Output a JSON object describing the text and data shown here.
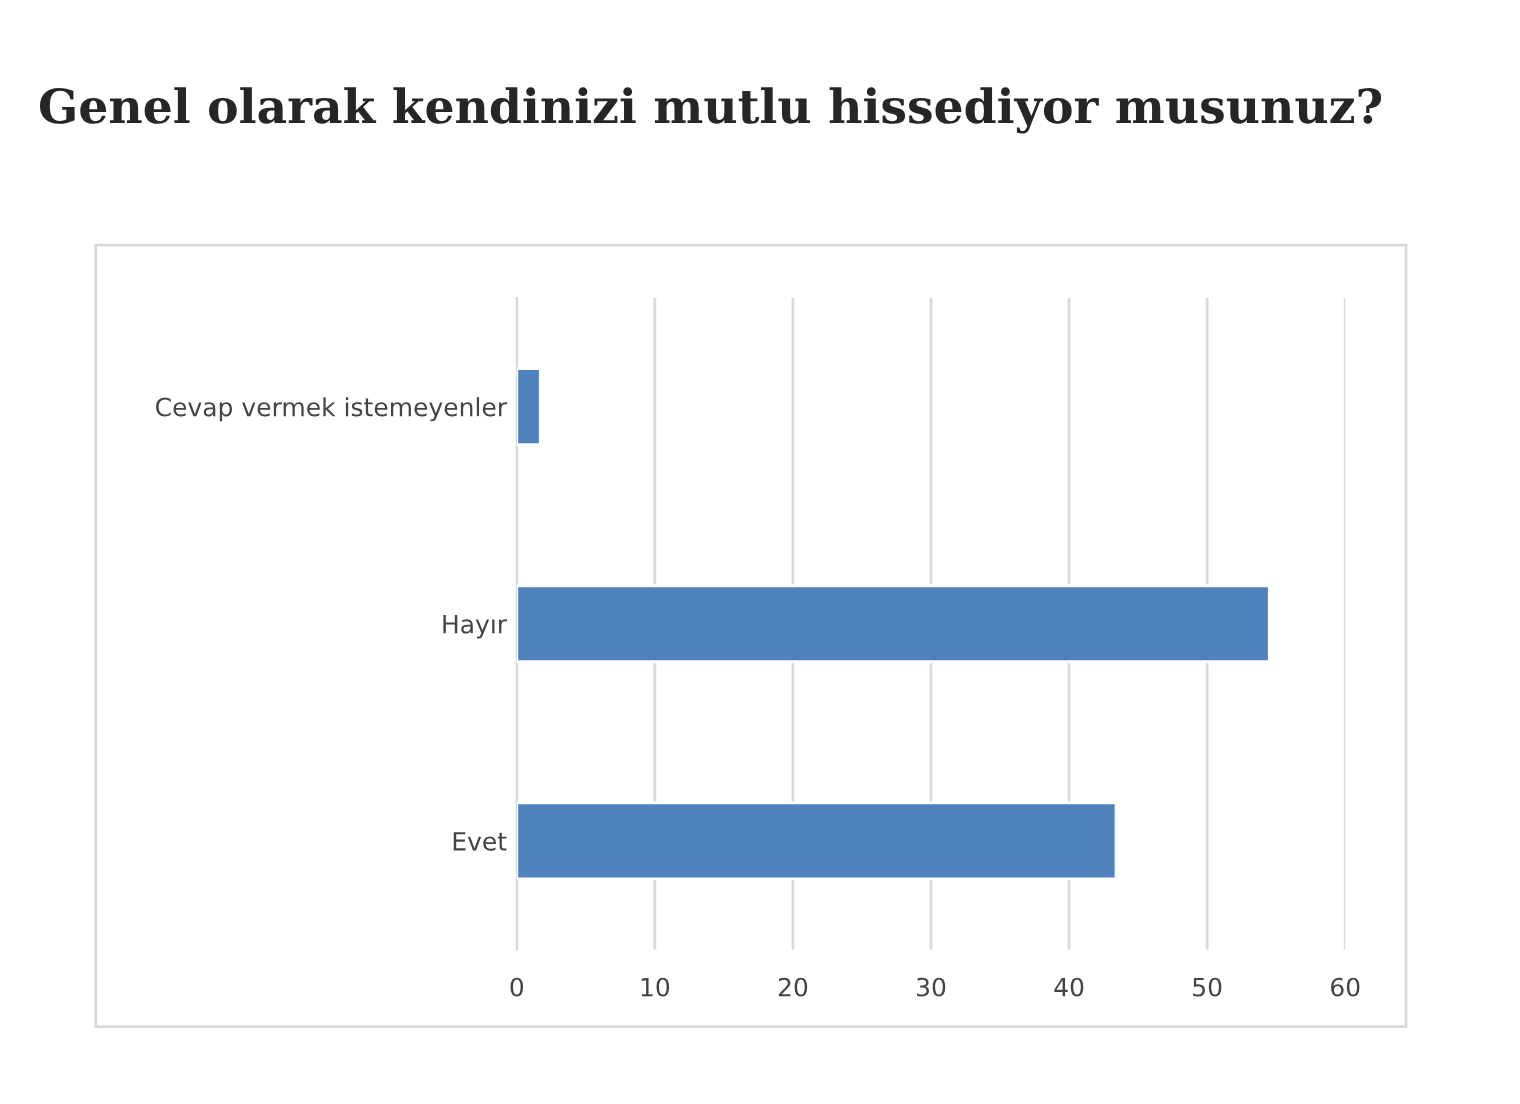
{
  "chart_data": {
    "type": "bar",
    "orientation": "horizontal",
    "title": "Genel olarak kendinizi mutlu hissediyor musunuz?",
    "categories": [
      "Cevap vermek istemeyenler",
      "Hayır",
      "Evet"
    ],
    "values": [
      1.7,
      54.5,
      43.4
    ],
    "color": "#4f81bd",
    "xlim": [
      0,
      60
    ],
    "xticks": [
      0,
      10,
      20,
      30,
      40,
      50,
      60
    ],
    "grid": "x"
  }
}
